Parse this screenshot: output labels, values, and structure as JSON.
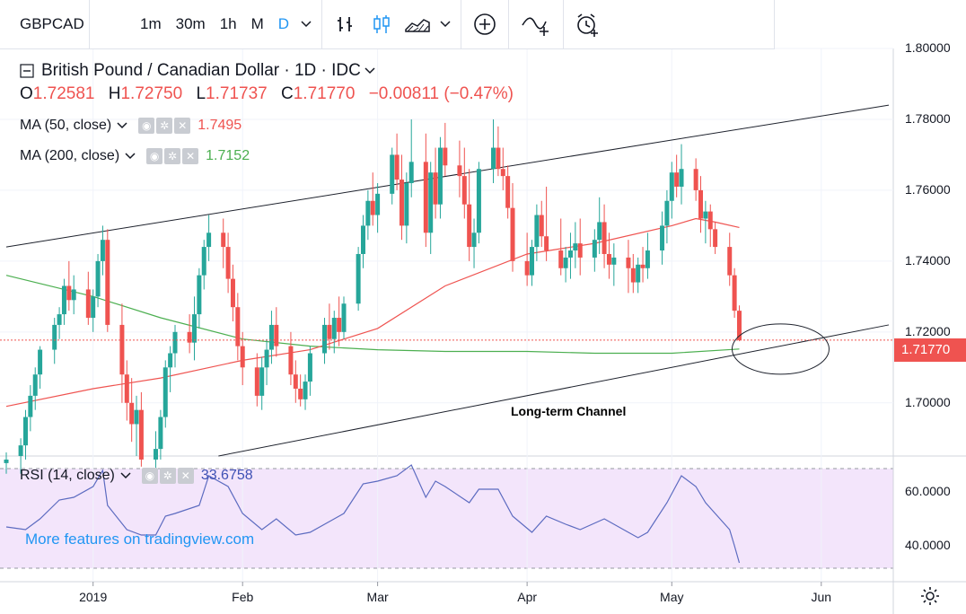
{
  "toolbar": {
    "symbol": "GBPCAD",
    "intervals": [
      "1m",
      "30m",
      "1h",
      "M",
      "D"
    ],
    "active_interval": "D",
    "icons": [
      "chevron-down-icon",
      "bar-chart-icon",
      "candlestick-icon",
      "area-chart-icon",
      "chevron-down-icon",
      "add-compare-icon",
      "indicators-icon",
      "alert-icon"
    ]
  },
  "legend": {
    "title": "British Pound / Canadian Dollar · 1D · IDC",
    "ohlc": [
      {
        "k": "O",
        "v": "1.72581"
      },
      {
        "k": "H",
        "v": "1.72750"
      },
      {
        "k": "L",
        "v": "1.71737"
      },
      {
        "k": "C",
        "v": "1.71770"
      }
    ],
    "change": "−0.00811 (−0.47%)"
  },
  "ma50": {
    "label": "MA (50, close)",
    "value": "1.7495",
    "color": "#ef5350"
  },
  "ma200": {
    "label": "MA (200, close)",
    "value": "1.7152",
    "color": "#4caf50"
  },
  "rsi": {
    "label": "RSI (14, close)",
    "value": "33.6758",
    "color": "#3f51b5"
  },
  "watermark": "More features on tradingview.com",
  "annotation": "Long-term Channel",
  "colors": {
    "up": "#26a69a",
    "down": "#ef5350",
    "rsi_band": "#f3e5fb"
  },
  "chart_data": [
    {
      "type": "candlestick",
      "title": "British Pound / Canadian Dollar · 1D · IDC",
      "y_ticks": [
        "1.80000",
        "1.78000",
        "1.76000",
        "1.74000",
        "1.72000",
        "1.70000"
      ],
      "ylim": [
        1.685,
        1.8
      ],
      "last_price": "1.71770",
      "x_ticks": [
        "2019",
        "Feb",
        "Mar",
        "Apr",
        "May",
        "Jun"
      ],
      "x_range": [
        "2018-12-14",
        "2019-06-15"
      ],
      "candles": [
        [
          "2018-12-14",
          1.683,
          1.686,
          1.68,
          1.684
        ],
        [
          "2018-12-17",
          1.685,
          1.69,
          1.68,
          1.688
        ],
        [
          "2018-12-18",
          1.688,
          1.698,
          1.684,
          1.696
        ],
        [
          "2018-12-19",
          1.696,
          1.705,
          1.692,
          1.702
        ],
        [
          "2018-12-20",
          1.702,
          1.71,
          1.698,
          1.708
        ],
        [
          "2018-12-21",
          1.708,
          1.716,
          1.704,
          1.715
        ],
        [
          "2018-12-24",
          1.715,
          1.724,
          1.711,
          1.722
        ],
        [
          "2018-12-25",
          1.722,
          1.727,
          1.718,
          1.725
        ],
        [
          "2018-12-26",
          1.725,
          1.735,
          1.722,
          1.733
        ],
        [
          "2018-12-27",
          1.733,
          1.74,
          1.726,
          1.729
        ],
        [
          "2018-12-28",
          1.729,
          1.736,
          1.725,
          1.732
        ],
        [
          "2018-12-31",
          1.732,
          1.737,
          1.722,
          1.724
        ],
        [
          "2019-01-01",
          1.724,
          1.732,
          1.72,
          1.73
        ],
        [
          "2019-01-02",
          1.73,
          1.742,
          1.727,
          1.74
        ],
        [
          "2019-01-03",
          1.74,
          1.75,
          1.736,
          1.746
        ],
        [
          "2019-01-04",
          1.746,
          1.749,
          1.72,
          1.722
        ],
        [
          "2019-01-07",
          1.722,
          1.728,
          1.7,
          1.708
        ],
        [
          "2019-01-08",
          1.708,
          1.712,
          1.695,
          1.7
        ],
        [
          "2019-01-09",
          1.7,
          1.707,
          1.689,
          1.694
        ],
        [
          "2019-01-10",
          1.694,
          1.702,
          1.685,
          1.698
        ],
        [
          "2019-01-11",
          1.698,
          1.703,
          1.682,
          1.684
        ],
        [
          "2019-01-14",
          1.684,
          1.692,
          1.68,
          1.687
        ],
        [
          "2019-01-15",
          1.687,
          1.698,
          1.684,
          1.696
        ],
        [
          "2019-01-16",
          1.696,
          1.712,
          1.693,
          1.71
        ],
        [
          "2019-01-17",
          1.71,
          1.716,
          1.703,
          1.714
        ],
        [
          "2019-01-18",
          1.714,
          1.722,
          1.71,
          1.72
        ],
        [
          "2019-01-21",
          1.72,
          1.725,
          1.714,
          1.717
        ],
        [
          "2019-01-22",
          1.717,
          1.73,
          1.712,
          1.725
        ],
        [
          "2019-01-23",
          1.725,
          1.738,
          1.721,
          1.736
        ],
        [
          "2019-01-24",
          1.736,
          1.746,
          1.732,
          1.744
        ],
        [
          "2019-01-25",
          1.744,
          1.753,
          1.74,
          1.748
        ],
        [
          "2019-01-28",
          1.748,
          1.752,
          1.738,
          1.744
        ],
        [
          "2019-01-29",
          1.744,
          1.748,
          1.731,
          1.735
        ],
        [
          "2019-01-30",
          1.735,
          1.739,
          1.723,
          1.727
        ],
        [
          "2019-01-31",
          1.727,
          1.731,
          1.712,
          1.716
        ],
        [
          "2019-02-01",
          1.716,
          1.72,
          1.705,
          1.71
        ],
        [
          "2019-02-04",
          1.71,
          1.714,
          1.699,
          1.702
        ],
        [
          "2019-02-05",
          1.702,
          1.713,
          1.698,
          1.71
        ],
        [
          "2019-02-06",
          1.71,
          1.718,
          1.705,
          1.715
        ],
        [
          "2019-02-07",
          1.715,
          1.726,
          1.711,
          1.722
        ],
        [
          "2019-02-08",
          1.722,
          1.727,
          1.713,
          1.716
        ],
        [
          "2019-02-11",
          1.716,
          1.72,
          1.705,
          1.708
        ],
        [
          "2019-02-12",
          1.708,
          1.712,
          1.7,
          1.704
        ],
        [
          "2019-02-13",
          1.704,
          1.708,
          1.699,
          1.701
        ],
        [
          "2019-02-14",
          1.701,
          1.708,
          1.698,
          1.706
        ],
        [
          "2019-02-15",
          1.706,
          1.716,
          1.702,
          1.714
        ],
        [
          "2019-02-18",
          1.714,
          1.724,
          1.711,
          1.722
        ],
        [
          "2019-02-19",
          1.722,
          1.728,
          1.715,
          1.718
        ],
        [
          "2019-02-20",
          1.718,
          1.726,
          1.714,
          1.724
        ],
        [
          "2019-02-21",
          1.724,
          1.73,
          1.716,
          1.72
        ],
        [
          "2019-02-22",
          1.72,
          1.73,
          1.718,
          1.728
        ],
        [
          "2019-02-25",
          1.728,
          1.744,
          1.726,
          1.742
        ],
        [
          "2019-02-26",
          1.742,
          1.753,
          1.738,
          1.75
        ],
        [
          "2019-02-27",
          1.75,
          1.76,
          1.746,
          1.757
        ],
        [
          "2019-02-28",
          1.757,
          1.765,
          1.75,
          1.753
        ],
        [
          "2019-03-01",
          1.753,
          1.762,
          1.748,
          1.759
        ],
        [
          "2019-03-04",
          1.759,
          1.772,
          1.756,
          1.77
        ],
        [
          "2019-03-05",
          1.77,
          1.776,
          1.76,
          1.763
        ],
        [
          "2019-03-06",
          1.763,
          1.77,
          1.746,
          1.75
        ],
        [
          "2019-03-07",
          1.75,
          1.765,
          1.745,
          1.762
        ],
        [
          "2019-03-08",
          1.762,
          1.78,
          1.758,
          1.768
        ],
        [
          "2019-03-11",
          1.768,
          1.776,
          1.744,
          1.748
        ],
        [
          "2019-03-12",
          1.748,
          1.768,
          1.742,
          1.765
        ],
        [
          "2019-03-13",
          1.765,
          1.772,
          1.752,
          1.756
        ],
        [
          "2019-03-14",
          1.756,
          1.775,
          1.752,
          1.772
        ],
        [
          "2019-03-15",
          1.772,
          1.779,
          1.764,
          1.767
        ],
        [
          "2019-03-18",
          1.767,
          1.774,
          1.758,
          1.764
        ],
        [
          "2019-03-19",
          1.764,
          1.772,
          1.752,
          1.756
        ],
        [
          "2019-03-20",
          1.756,
          1.766,
          1.74,
          1.744
        ],
        [
          "2019-03-21",
          1.744,
          1.752,
          1.738,
          1.748
        ],
        [
          "2019-03-22",
          1.748,
          1.768,
          1.745,
          1.766
        ],
        [
          "2019-03-25",
          1.766,
          1.78,
          1.762,
          1.772
        ],
        [
          "2019-03-26",
          1.772,
          1.778,
          1.764,
          1.766
        ],
        [
          "2019-03-27",
          1.766,
          1.772,
          1.76,
          1.764
        ],
        [
          "2019-03-28",
          1.764,
          1.767,
          1.752,
          1.755
        ],
        [
          "2019-03-29",
          1.755,
          1.762,
          1.737,
          1.74
        ],
        [
          "2019-04-01",
          1.74,
          1.748,
          1.733,
          1.736
        ],
        [
          "2019-04-02",
          1.736,
          1.746,
          1.733,
          1.744
        ],
        [
          "2019-04-03",
          1.744,
          1.756,
          1.74,
          1.753
        ],
        [
          "2019-04-04",
          1.753,
          1.757,
          1.744,
          1.747
        ],
        [
          "2019-04-05",
          1.747,
          1.761,
          1.74,
          1.743
        ],
        [
          "2019-04-08",
          1.743,
          1.752,
          1.736,
          1.738
        ],
        [
          "2019-04-09",
          1.738,
          1.744,
          1.734,
          1.741
        ],
        [
          "2019-04-10",
          1.741,
          1.748,
          1.735,
          1.743
        ],
        [
          "2019-04-11",
          1.743,
          1.751,
          1.738,
          1.745
        ],
        [
          "2019-04-12",
          1.745,
          1.752,
          1.736,
          1.741
        ],
        [
          "2019-04-15",
          1.741,
          1.749,
          1.737,
          1.746
        ],
        [
          "2019-04-16",
          1.746,
          1.758,
          1.742,
          1.751
        ],
        [
          "2019-04-17",
          1.751,
          1.756,
          1.738,
          1.742
        ],
        [
          "2019-04-18",
          1.742,
          1.748,
          1.735,
          1.739
        ],
        [
          "2019-04-19",
          1.739,
          1.745,
          1.733,
          1.741
        ],
        [
          "2019-04-22",
          1.741,
          1.746,
          1.731,
          1.738
        ],
        [
          "2019-04-23",
          1.738,
          1.742,
          1.731,
          1.734
        ],
        [
          "2019-04-24",
          1.734,
          1.741,
          1.731,
          1.739
        ],
        [
          "2019-04-25",
          1.739,
          1.744,
          1.734,
          1.738
        ],
        [
          "2019-04-26",
          1.738,
          1.748,
          1.735,
          1.743
        ],
        [
          "2019-04-29",
          1.743,
          1.754,
          1.739,
          1.75
        ],
        [
          "2019-04-30",
          1.75,
          1.76,
          1.745,
          1.757
        ],
        [
          "2019-05-01",
          1.757,
          1.768,
          1.752,
          1.765
        ],
        [
          "2019-05-02",
          1.765,
          1.77,
          1.758,
          1.761
        ],
        [
          "2019-05-03",
          1.761,
          1.773,
          1.756,
          1.766
        ],
        [
          "2019-05-06",
          1.766,
          1.769,
          1.757,
          1.76
        ],
        [
          "2019-05-07",
          1.76,
          1.764,
          1.748,
          1.752
        ],
        [
          "2019-05-08",
          1.752,
          1.757,
          1.745,
          1.754
        ],
        [
          "2019-05-09",
          1.754,
          1.756,
          1.744,
          1.749
        ],
        [
          "2019-05-10",
          1.749,
          1.751,
          1.742,
          1.744
        ],
        [
          "2019-05-13",
          1.744,
          1.748,
          1.733,
          1.736
        ],
        [
          "2019-05-14",
          1.736,
          1.738,
          1.724,
          1.726
        ],
        [
          "2019-05-15",
          1.726,
          1.7275,
          1.7174,
          1.7177
        ]
      ],
      "ma50": {
        "name": "MA (50, close)",
        "points": [
          [
            "2018-12-14",
            1.699
          ],
          [
            "2019-01-01",
            1.704
          ],
          [
            "2019-01-15",
            1.707
          ],
          [
            "2019-02-01",
            1.712
          ],
          [
            "2019-02-15",
            1.715
          ],
          [
            "2019-03-01",
            1.721
          ],
          [
            "2019-03-15",
            1.733
          ],
          [
            "2019-04-01",
            1.742
          ],
          [
            "2019-04-15",
            1.745
          ],
          [
            "2019-05-01",
            1.75
          ],
          [
            "2019-05-06",
            1.752
          ],
          [
            "2019-05-10",
            1.751
          ],
          [
            "2019-05-15",
            1.7495
          ]
        ]
      },
      "ma200": {
        "name": "MA (200, close)",
        "points": [
          [
            "2018-12-14",
            1.736
          ],
          [
            "2019-01-01",
            1.73
          ],
          [
            "2019-01-15",
            1.724
          ],
          [
            "2019-02-01",
            1.718
          ],
          [
            "2019-02-15",
            1.716
          ],
          [
            "2019-03-01",
            1.715
          ],
          [
            "2019-03-15",
            1.7145
          ],
          [
            "2019-04-01",
            1.7145
          ],
          [
            "2019-04-15",
            1.714
          ],
          [
            "2019-05-01",
            1.714
          ],
          [
            "2019-05-15",
            1.7152
          ]
        ]
      },
      "channel": {
        "name": "Long-term Channel",
        "upper": [
          [
            "2018-12-14",
            1.744
          ],
          [
            "2019-06-15",
            1.784
          ]
        ],
        "lower": [
          [
            "2019-01-27",
            1.685
          ],
          [
            "2019-06-15",
            1.722
          ]
        ]
      }
    },
    {
      "type": "line",
      "title": "RSI (14, close)",
      "y_ticks": [
        "60.0000",
        "40.0000"
      ],
      "ylim": [
        27,
        73
      ],
      "band": [
        30,
        70
      ],
      "last_value": "33.6758",
      "points": [
        [
          "2018-12-14",
          47
        ],
        [
          "2018-12-18",
          46
        ],
        [
          "2018-12-21",
          50
        ],
        [
          "2018-12-25",
          57
        ],
        [
          "2018-12-28",
          58
        ],
        [
          "2019-01-01",
          62
        ],
        [
          "2019-01-03",
          68
        ],
        [
          "2019-01-04",
          55
        ],
        [
          "2019-01-08",
          46
        ],
        [
          "2019-01-11",
          44
        ],
        [
          "2019-01-14",
          44
        ],
        [
          "2019-01-16",
          51
        ],
        [
          "2019-01-18",
          52
        ],
        [
          "2019-01-23",
          55
        ],
        [
          "2019-01-25",
          66
        ],
        [
          "2019-01-29",
          62
        ],
        [
          "2019-02-01",
          52
        ],
        [
          "2019-02-05",
          46
        ],
        [
          "2019-02-08",
          50
        ],
        [
          "2019-02-12",
          44
        ],
        [
          "2019-02-15",
          45
        ],
        [
          "2019-02-20",
          50
        ],
        [
          "2019-02-22",
          52
        ],
        [
          "2019-02-26",
          63
        ],
        [
          "2019-03-01",
          64
        ],
        [
          "2019-03-05",
          66
        ],
        [
          "2019-03-08",
          70
        ],
        [
          "2019-03-11",
          58
        ],
        [
          "2019-03-13",
          64
        ],
        [
          "2019-03-15",
          62
        ],
        [
          "2019-03-20",
          56
        ],
        [
          "2019-03-22",
          61
        ],
        [
          "2019-03-26",
          61
        ],
        [
          "2019-03-29",
          51
        ],
        [
          "2019-04-02",
          45
        ],
        [
          "2019-04-05",
          51
        ],
        [
          "2019-04-09",
          48
        ],
        [
          "2019-04-12",
          46
        ],
        [
          "2019-04-17",
          50
        ],
        [
          "2019-04-22",
          45
        ],
        [
          "2019-04-24",
          43
        ],
        [
          "2019-04-26",
          45
        ],
        [
          "2019-04-30",
          56
        ],
        [
          "2019-05-03",
          66
        ],
        [
          "2019-05-06",
          62
        ],
        [
          "2019-05-08",
          56
        ],
        [
          "2019-05-10",
          52
        ],
        [
          "2019-05-13",
          46
        ],
        [
          "2019-05-14",
          40
        ],
        [
          "2019-05-15",
          33.68
        ]
      ]
    }
  ]
}
